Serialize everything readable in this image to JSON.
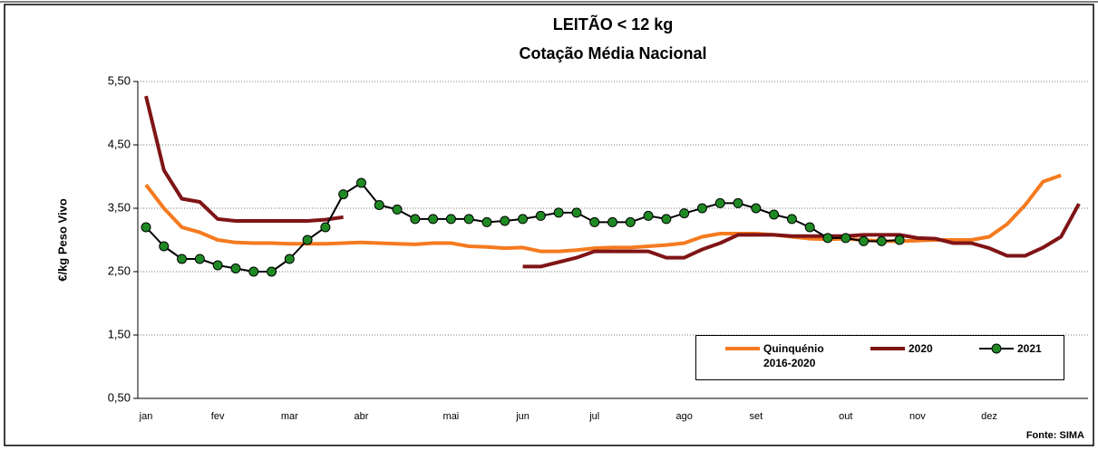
{
  "chart_data": {
    "type": "line",
    "title": "LEITÃO < 12 kg",
    "subtitle": "Cotação Média Nacional",
    "y_label": "€/kg Peso Vivo",
    "source": "Fonte: SIMA",
    "categories": [
      "jan",
      null,
      null,
      null,
      "fev",
      null,
      null,
      null,
      "mar",
      null,
      null,
      null,
      "abr",
      null,
      null,
      null,
      null,
      "mai",
      null,
      null,
      null,
      "jun",
      null,
      null,
      null,
      "jul",
      null,
      null,
      null,
      null,
      "ago",
      null,
      null,
      null,
      "set",
      null,
      null,
      null,
      null,
      "out",
      null,
      null,
      null,
      "nov",
      null,
      null,
      null,
      "dez",
      null,
      null,
      null,
      null,
      null
    ],
    "ylim": [
      0.5,
      5.5
    ],
    "yticks": [
      {
        "value": 0.5,
        "label": "0,50"
      },
      {
        "value": 1.5,
        "label": "1,50"
      },
      {
        "value": 2.5,
        "label": "2,50"
      },
      {
        "value": 3.5,
        "label": "3,50"
      },
      {
        "value": 4.5,
        "label": "4,50"
      },
      {
        "value": 5.5,
        "label": "5,50"
      }
    ],
    "grid": true,
    "series": [
      {
        "name": "Quinquénio 2016-2020",
        "color": "#f57a1f",
        "markers": false,
        "values": [
          3.87,
          3.5,
          3.2,
          3.12,
          3.0,
          2.96,
          2.95,
          2.95,
          2.94,
          2.94,
          2.94,
          2.95,
          2.96,
          2.95,
          2.94,
          2.93,
          2.95,
          2.95,
          2.9,
          2.89,
          2.87,
          2.88,
          2.82,
          2.82,
          2.84,
          2.87,
          2.88,
          2.88,
          2.9,
          2.92,
          2.95,
          3.05,
          3.1,
          3.1,
          3.1,
          3.08,
          3.05,
          3.02,
          3.01,
          3.02,
          3.0,
          2.98,
          2.98,
          2.99,
          3.0,
          3.0,
          3.0,
          3.05,
          3.25,
          3.55,
          3.92,
          4.02,
          null
        ]
      },
      {
        "name": "2020",
        "color": "#7f1416",
        "markers": false,
        "values": [
          5.27,
          4.1,
          3.65,
          3.6,
          3.33,
          3.3,
          3.3,
          3.3,
          3.3,
          3.3,
          3.32,
          3.36,
          null,
          null,
          null,
          null,
          null,
          null,
          null,
          null,
          null,
          2.58,
          2.58,
          2.65,
          2.72,
          2.82,
          2.82,
          2.82,
          2.82,
          2.72,
          2.72,
          2.85,
          2.95,
          3.08,
          3.08,
          3.08,
          3.06,
          3.06,
          3.06,
          3.06,
          3.08,
          3.08,
          3.08,
          3.03,
          3.02,
          2.95,
          2.95,
          2.87,
          2.75,
          2.75,
          2.88,
          3.05,
          3.57
        ]
      },
      {
        "name": "2021",
        "color": "#000000",
        "marker_color": "#1f8a24",
        "markers": true,
        "values": [
          3.2,
          2.9,
          2.7,
          2.7,
          2.6,
          2.55,
          2.5,
          2.5,
          2.7,
          3.0,
          3.2,
          3.72,
          3.9,
          3.55,
          3.48,
          3.33,
          3.33,
          3.33,
          3.33,
          3.28,
          3.3,
          3.33,
          3.38,
          3.43,
          3.43,
          3.28,
          3.28,
          3.28,
          3.38,
          3.33,
          3.42,
          3.5,
          3.58,
          3.58,
          3.5,
          3.4,
          3.33,
          3.2,
          3.03,
          3.03,
          2.98,
          2.98,
          3.0,
          null,
          null,
          null,
          null,
          null,
          null,
          null,
          null,
          null,
          null
        ]
      }
    ]
  }
}
